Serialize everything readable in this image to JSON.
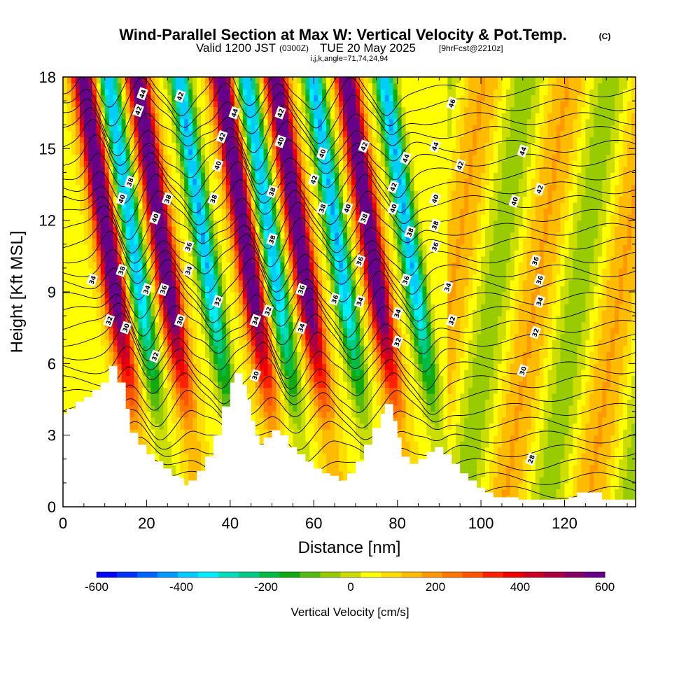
{
  "title": {
    "main": "Wind-Parallel Section at Max W: Vertical Velocity & Pot.Temp.",
    "copyright": "(C)",
    "valid_prefix": "Valid 1200 JST",
    "valid_utc": "(0300Z)",
    "valid_date": "TUE 20 May 2025",
    "forecast": "[9hrFcst@2210z]",
    "indices": "i,j,k,angle=71,74,24,94"
  },
  "chart_data": {
    "type": "heatmap",
    "xlabel": "Distance [nm]",
    "ylabel": "Height [Kft MSL]",
    "xlim": [
      0,
      137
    ],
    "ylim": [
      0,
      18
    ],
    "x_ticks": [
      0,
      20,
      40,
      60,
      80,
      100,
      120
    ],
    "y_ticks": [
      0,
      3,
      6,
      9,
      12,
      15,
      18
    ],
    "colorbar": {
      "label": "Vertical Velocity [cm/s]",
      "range": [
        -600,
        600
      ],
      "tick_values": [
        -600,
        -400,
        -200,
        0,
        200,
        400,
        600
      ],
      "colors": [
        "#0000ff",
        "#0033ff",
        "#0066ff",
        "#0099ff",
        "#00ccff",
        "#00eeff",
        "#00ddbb",
        "#00cc88",
        "#00bb44",
        "#11aa11",
        "#55bb11",
        "#99cc00",
        "#ccdd00",
        "#ffff00",
        "#ffdd00",
        "#ffbb00",
        "#ff9900",
        "#ff7700",
        "#ff5500",
        "#ff2200",
        "#ee0000",
        "#cc0022",
        "#aa0044",
        "#880066",
        "#660088"
      ]
    },
    "updraft_axes_x_at_surface": [
      15,
      28,
      48,
      61,
      78
    ],
    "downdraft_axes_x_at_surface": [
      21,
      38,
      54,
      70,
      87
    ],
    "terrain": {
      "x": [
        0,
        1,
        3,
        5,
        7,
        9,
        11,
        12,
        13,
        15,
        16,
        18,
        20,
        22,
        24,
        26,
        28,
        29,
        30,
        32,
        34,
        36,
        38,
        40,
        41,
        42,
        43,
        44,
        45,
        46,
        47,
        48,
        50,
        52,
        54,
        56,
        58,
        60,
        62,
        64,
        66,
        68,
        70,
        72,
        74,
        76,
        77,
        78,
        79,
        80,
        81,
        83,
        85,
        87,
        89,
        91,
        93,
        95,
        97,
        99,
        101,
        103,
        105,
        107,
        109,
        111,
        113,
        115,
        117,
        119,
        121,
        123,
        125,
        127,
        129,
        131,
        133,
        135,
        137
      ],
      "y_kft": [
        3.9,
        4.1,
        4.4,
        4.6,
        4.9,
        5.2,
        5.9,
        5.9,
        5.2,
        4.1,
        3.1,
        2.6,
        2.2,
        1.9,
        1.6,
        1.3,
        1.2,
        0.9,
        1.1,
        1.5,
        2.1,
        3.0,
        4.2,
        5.2,
        5.6,
        5.6,
        5.1,
        4.5,
        3.6,
        3.0,
        2.6,
        2.9,
        3.2,
        3.0,
        2.5,
        2.2,
        1.9,
        1.6,
        1.4,
        1.3,
        1.1,
        1.4,
        1.9,
        2.6,
        3.3,
        3.9,
        4.3,
        4.3,
        3.6,
        2.9,
        2.1,
        1.8,
        2.0,
        2.3,
        2.5,
        2.2,
        1.8,
        1.4,
        1.1,
        0.8,
        0.6,
        0.4,
        0.4,
        0.4,
        0.3,
        0.3,
        0.3,
        0.3,
        0.3,
        0.3,
        0.4,
        0.6,
        0.6,
        0.6,
        0.3,
        0.3,
        0.3,
        0.3,
        0.3
      ]
    },
    "contour_labels": [
      {
        "x": 19,
        "y": 17.3,
        "t": "44"
      },
      {
        "x": 18,
        "y": 16.6,
        "t": "42"
      },
      {
        "x": 28,
        "y": 17.2,
        "t": "42"
      },
      {
        "x": 41,
        "y": 16.5,
        "t": "44"
      },
      {
        "x": 52,
        "y": 16.5,
        "t": "42"
      },
      {
        "x": 93,
        "y": 16.9,
        "t": "46"
      },
      {
        "x": 38,
        "y": 15.5,
        "t": "42"
      },
      {
        "x": 52,
        "y": 15.3,
        "t": "40"
      },
      {
        "x": 72,
        "y": 15.1,
        "t": "42"
      },
      {
        "x": 82,
        "y": 14.6,
        "t": "44"
      },
      {
        "x": 89,
        "y": 15.1,
        "t": "44"
      },
      {
        "x": 110,
        "y": 14.9,
        "t": "44"
      },
      {
        "x": 37,
        "y": 14.3,
        "t": "40"
      },
      {
        "x": 62,
        "y": 14.8,
        "t": "40"
      },
      {
        "x": 95,
        "y": 14.3,
        "t": "42"
      },
      {
        "x": 16,
        "y": 13.6,
        "t": "38"
      },
      {
        "x": 60,
        "y": 13.7,
        "t": "42"
      },
      {
        "x": 79,
        "y": 13.4,
        "t": "42"
      },
      {
        "x": 114,
        "y": 13.3,
        "t": "42"
      },
      {
        "x": 50,
        "y": 13.2,
        "t": "38"
      },
      {
        "x": 36,
        "y": 12.9,
        "t": "38"
      },
      {
        "x": 14,
        "y": 12.9,
        "t": "40"
      },
      {
        "x": 25,
        "y": 12.9,
        "t": "38"
      },
      {
        "x": 62,
        "y": 12.5,
        "t": "38"
      },
      {
        "x": 68,
        "y": 12.5,
        "t": "40"
      },
      {
        "x": 79,
        "y": 12.5,
        "t": "40"
      },
      {
        "x": 89,
        "y": 12.9,
        "t": "40"
      },
      {
        "x": 108,
        "y": 12.8,
        "t": "40"
      },
      {
        "x": 22,
        "y": 12.1,
        "t": "40"
      },
      {
        "x": 72,
        "y": 12.1,
        "t": "38"
      },
      {
        "x": 89,
        "y": 11.8,
        "t": "38"
      },
      {
        "x": 83,
        "y": 11.5,
        "t": "38"
      },
      {
        "x": 50,
        "y": 11.2,
        "t": "38"
      },
      {
        "x": 30,
        "y": 10.9,
        "t": "36"
      },
      {
        "x": 89,
        "y": 10.9,
        "t": "36"
      },
      {
        "x": 113,
        "y": 10.3,
        "t": "36"
      },
      {
        "x": 71,
        "y": 10.3,
        "t": "36"
      },
      {
        "x": 14,
        "y": 9.9,
        "t": "38"
      },
      {
        "x": 30,
        "y": 9.9,
        "t": "34"
      },
      {
        "x": 7,
        "y": 9.5,
        "t": "34"
      },
      {
        "x": 82,
        "y": 9.5,
        "t": "36"
      },
      {
        "x": 114,
        "y": 9.5,
        "t": "36"
      },
      {
        "x": 20,
        "y": 9.1,
        "t": "34"
      },
      {
        "x": 24,
        "y": 9.1,
        "t": "36"
      },
      {
        "x": 57,
        "y": 9.1,
        "t": "36"
      },
      {
        "x": 92,
        "y": 9.2,
        "t": "34"
      },
      {
        "x": 65,
        "y": 8.7,
        "t": "36"
      },
      {
        "x": 37,
        "y": 8.6,
        "t": "32"
      },
      {
        "x": 71,
        "y": 8.6,
        "t": "34"
      },
      {
        "x": 114,
        "y": 8.6,
        "t": "34"
      },
      {
        "x": 49,
        "y": 8.2,
        "t": "32"
      },
      {
        "x": 80,
        "y": 8.1,
        "t": "34"
      },
      {
        "x": 11,
        "y": 7.8,
        "t": "32"
      },
      {
        "x": 28,
        "y": 7.8,
        "t": "30"
      },
      {
        "x": 46,
        "y": 7.8,
        "t": "34"
      },
      {
        "x": 93,
        "y": 7.8,
        "t": "32"
      },
      {
        "x": 15,
        "y": 7.5,
        "t": "30"
      },
      {
        "x": 57,
        "y": 7.5,
        "t": "34"
      },
      {
        "x": 113,
        "y": 7.3,
        "t": "32"
      },
      {
        "x": 80,
        "y": 6.9,
        "t": "32"
      },
      {
        "x": 22,
        "y": 6.3,
        "t": "32"
      },
      {
        "x": 110,
        "y": 5.7,
        "t": "30"
      },
      {
        "x": 46,
        "y": 5.5,
        "t": "30"
      },
      {
        "x": 112,
        "y": 2.0,
        "t": "28"
      }
    ]
  }
}
